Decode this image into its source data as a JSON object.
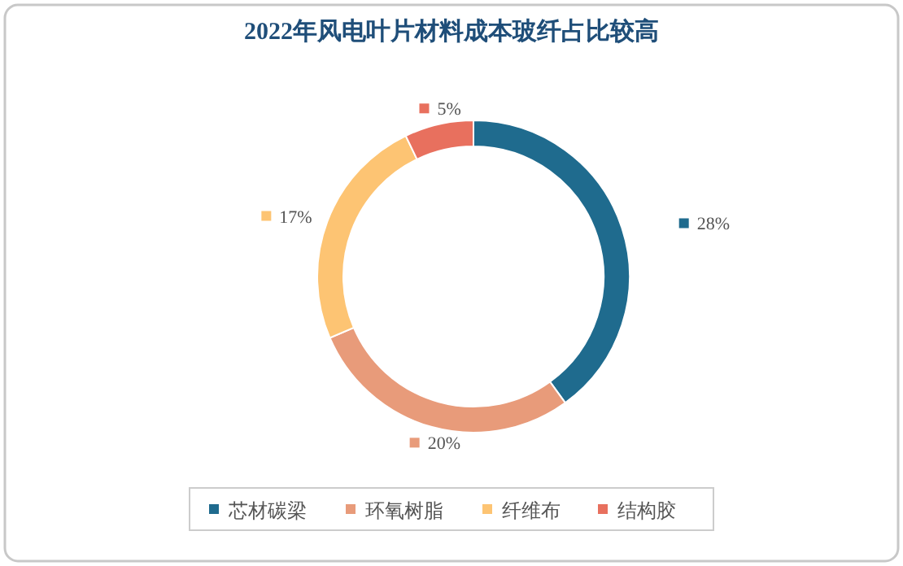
{
  "chart_data": {
    "type": "donut",
    "title": "2022年风电叶片材料成本玻纤占比较高",
    "categories": [
      "芯材碳梁",
      "环氧树脂",
      "纤维布",
      "结构胶"
    ],
    "values": [
      28,
      20,
      17,
      5
    ],
    "colors": [
      "#1f6b8e",
      "#e89b7a",
      "#fdc473",
      "#e8705e"
    ],
    "value_labels": [
      "28%",
      "20%",
      "17%",
      "5%"
    ],
    "legend": "bottom"
  }
}
